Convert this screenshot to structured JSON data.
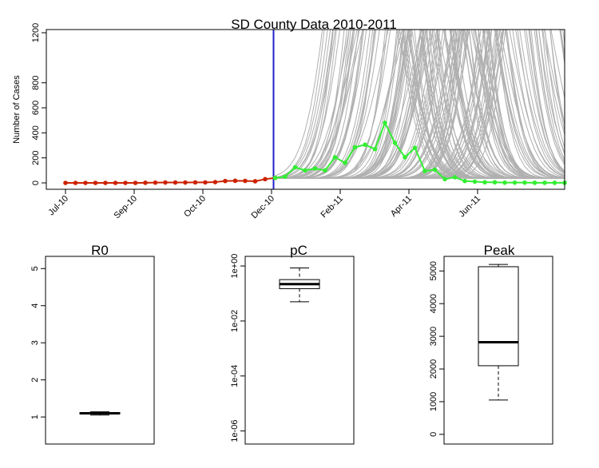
{
  "chart_data": [
    {
      "type": "line",
      "title": "SD County Data 2010-2011",
      "ylabel": "Number of Cases",
      "xlabel": "",
      "x_ticks": [
        "Jul-10",
        "Sep-10",
        "Oct-10",
        "Dec-10",
        "Feb-11",
        "Apr-11",
        "Jun-11"
      ],
      "y_ticks": [
        "0",
        "200",
        "400",
        "600",
        "800",
        "1200"
      ],
      "ylim": [
        0,
        1250
      ],
      "forecast_start_week": 21,
      "colors": {
        "observed_fit": "#cc2200",
        "observed_forecast": "#33ee33",
        "simulations": "#b0b0b0",
        "forecast_line": "#2222cc"
      },
      "series": [
        {
          "role": "observed-fitted",
          "weeks": [
            0,
            1,
            2,
            3,
            4,
            5,
            6,
            7,
            8,
            9,
            10,
            11,
            12,
            13,
            14,
            15,
            16,
            17,
            18,
            19,
            20,
            21
          ],
          "values": [
            0,
            0,
            0,
            0,
            0,
            0,
            0,
            0,
            1,
            2,
            3,
            3,
            3,
            4,
            4,
            6,
            15,
            17,
            16,
            13,
            30,
            40
          ]
        },
        {
          "role": "observed-forecast",
          "weeks": [
            21,
            22,
            23,
            24,
            25,
            26,
            27,
            28,
            29,
            30,
            31,
            32,
            33,
            34,
            35,
            36,
            37,
            38,
            39,
            40,
            41,
            42,
            43,
            44,
            45,
            46,
            47,
            48,
            49,
            50
          ],
          "values": [
            40,
            50,
            125,
            100,
            115,
            100,
            205,
            160,
            285,
            305,
            270,
            480,
            320,
            205,
            280,
            95,
            105,
            30,
            45,
            15,
            10,
            5,
            5,
            2,
            2,
            2,
            1,
            1,
            1,
            1
          ]
        }
      ]
    },
    {
      "type": "box",
      "title": "R0",
      "y_ticks": [
        "1",
        "2",
        "3",
        "4",
        "5"
      ],
      "ylim": [
        0.4,
        5.2
      ],
      "stats": {
        "min": 1.05,
        "q1": 1.08,
        "median": 1.1,
        "q3": 1.12,
        "max": 1.14
      }
    },
    {
      "type": "box",
      "title": "pC",
      "log_scale": true,
      "y_ticks": [
        "1e-06",
        "1e-04",
        "1e-02",
        "1e+00"
      ],
      "ylim": [
        5e-07,
        1.5
      ],
      "stats": {
        "min": 0.05,
        "q1": 0.15,
        "median": 0.22,
        "q3": 0.32,
        "max": 0.85
      }
    },
    {
      "type": "box",
      "title": "Peak",
      "y_ticks": [
        "0",
        "1000",
        "2000",
        "3000",
        "4000",
        "5000"
      ],
      "ylim": [
        -150,
        5300
      ],
      "stats": {
        "min": 1050,
        "q1": 2100,
        "median": 2820,
        "q3": 5130,
        "max": 5200
      }
    }
  ]
}
